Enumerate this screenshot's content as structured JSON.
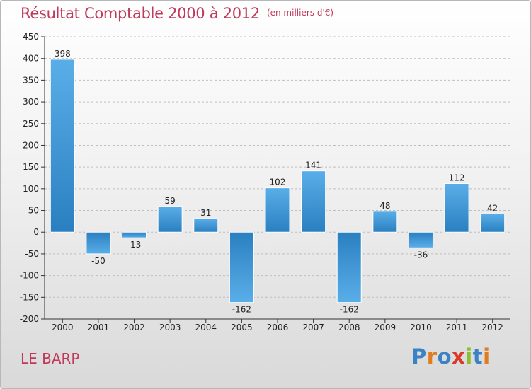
{
  "header": {
    "title": "Résultat Comptable 2000 à 2012",
    "unit": "(en milliers d'€)"
  },
  "footer": {
    "commune": "LE BARP",
    "brand": "Proxiti"
  },
  "colors": {
    "title": "#c0395a",
    "bar_top": "#5aaee8",
    "bar_bottom": "#2a7fc0",
    "grid": "#bfbfbf"
  },
  "chart_data": {
    "type": "bar",
    "title": "Résultat Comptable 2000 à 2012",
    "subtitle": "(en milliers d'€)",
    "categories": [
      "2000",
      "2001",
      "2002",
      "2003",
      "2004",
      "2005",
      "2006",
      "2007",
      "2008",
      "2009",
      "2010",
      "2011",
      "2012"
    ],
    "values": [
      398,
      -50,
      -13,
      59,
      31,
      -162,
      102,
      141,
      -162,
      48,
      -36,
      112,
      42
    ],
    "data_labels": [
      "398",
      "-50",
      "-13",
      "59",
      "31",
      "-162",
      "102",
      "141",
      "-162",
      "48",
      "-36",
      "112",
      "42"
    ],
    "ylim": [
      -200,
      450
    ],
    "yticks": [
      -200,
      -150,
      -100,
      -50,
      0,
      50,
      100,
      150,
      200,
      250,
      300,
      350,
      400,
      450
    ],
    "grid": "horizontal dashed",
    "legend": "none"
  }
}
